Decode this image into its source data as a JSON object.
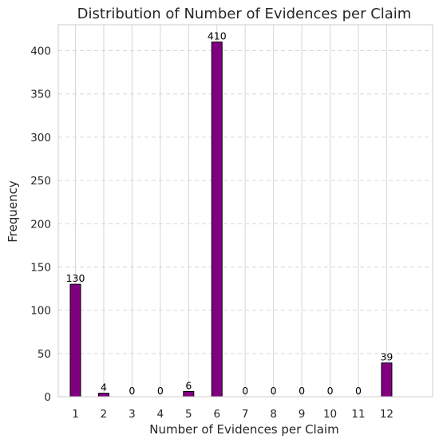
{
  "chart_data": {
    "type": "bar",
    "title": "Distribution of Number of Evidences per Claim",
    "xlabel": "Number of Evidences per Claim",
    "ylabel": "Frequency",
    "categories": [
      "1",
      "2",
      "3",
      "4",
      "5",
      "6",
      "7",
      "8",
      "9",
      "10",
      "11",
      "12"
    ],
    "values": [
      130,
      4,
      0,
      0,
      6,
      410,
      0,
      0,
      0,
      0,
      0,
      39
    ],
    "data_labels": [
      "130",
      "4",
      "0",
      "0",
      "6",
      "410",
      "0",
      "0",
      "0",
      "0",
      "0",
      "39"
    ],
    "yticks": [
      "0",
      "50",
      "100",
      "150",
      "200",
      "250",
      "300",
      "350",
      "400"
    ],
    "ylim": [
      0,
      430
    ],
    "grid": true,
    "bar_color": "#800080",
    "bar_edge_color": "#000000"
  }
}
